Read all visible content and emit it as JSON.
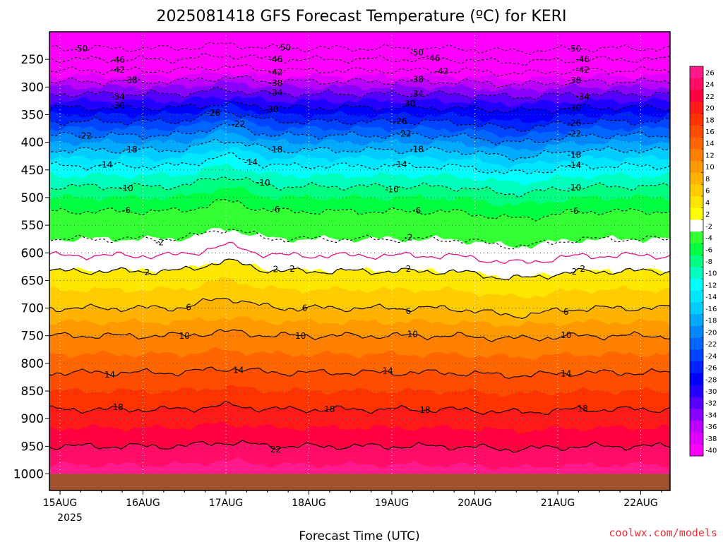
{
  "chart_data": {
    "type": "heatmap",
    "title": "2025081418 GFS Forecast Temperature (ºC) for KERI",
    "xlabel": "Forecast Time (UTC)",
    "ylabel": "",
    "x_ticks": [
      "15AUG",
      "16AUG",
      "17AUG",
      "18AUG",
      "19AUG",
      "20AUG",
      "21AUG",
      "22AUG"
    ],
    "x_year_label": "2025",
    "y_ticks": [
      250,
      300,
      350,
      400,
      450,
      500,
      550,
      600,
      650,
      700,
      750,
      800,
      850,
      900,
      950,
      1000
    ],
    "y_range_hpa": [
      200,
      1030
    ],
    "x_range_days": [
      0,
      7.4
    ],
    "ground_pressure_hpa": 1000,
    "ground_color": "#a0522d",
    "colorbar_ticks": [
      26,
      24,
      22,
      20,
      18,
      16,
      14,
      12,
      10,
      8,
      6,
      4,
      2,
      -2,
      -4,
      -6,
      -8,
      -10,
      -12,
      -14,
      -16,
      -18,
      -20,
      -22,
      -24,
      -26,
      -28,
      -30,
      -32,
      -34,
      -36,
      -38,
      -40
    ],
    "colorbar_colors": [
      "#ff1a8c",
      "#ff0d66",
      "#ff0040",
      "#ff1a1a",
      "#ff3300",
      "#ff4d00",
      "#ff6600",
      "#ff8000",
      "#ff9900",
      "#ffb300",
      "#ffcc00",
      "#ffe600",
      "#ffff00",
      "#ffffff",
      "#33ff33",
      "#00ff40",
      "#00ff80",
      "#00ffbf",
      "#00ffff",
      "#00e6ff",
      "#00ccff",
      "#00aaff",
      "#0088ff",
      "#0066ff",
      "#0044ff",
      "#0022ff",
      "#0000ff",
      "#2200ff",
      "#5500ff",
      "#8800ff",
      "#bb00ff",
      "#dd00ff",
      "#ff00ff"
    ],
    "temperature_profile": [
      {
        "p": 200,
        "t": -56
      },
      {
        "p": 250,
        "t": -46
      },
      {
        "p": 300,
        "t": -36
      },
      {
        "p": 350,
        "t": -28
      },
      {
        "p": 400,
        "t": -20
      },
      {
        "p": 450,
        "t": -13
      },
      {
        "p": 500,
        "t": -8
      },
      {
        "p": 550,
        "t": -4
      },
      {
        "p": 600,
        "t": 0
      },
      {
        "p": 650,
        "t": 3
      },
      {
        "p": 700,
        "t": 6
      },
      {
        "p": 750,
        "t": 10
      },
      {
        "p": 800,
        "t": 13
      },
      {
        "p": 850,
        "t": 16
      },
      {
        "p": 900,
        "t": 19
      },
      {
        "p": 950,
        "t": 22
      },
      {
        "p": 1000,
        "t": 25
      }
    ],
    "contours": [
      {
        "value": -50,
        "style": "dashed",
        "labels": [
          {
            "day": 0.25,
            "label": "-50"
          },
          {
            "day": 2.7,
            "label": "-50"
          },
          {
            "day": 4.3,
            "label": "-50"
          },
          {
            "day": 6.2,
            "label": "-50"
          }
        ]
      },
      {
        "value": -46,
        "style": "dashed",
        "labels": [
          {
            "day": 0.7,
            "label": "-46"
          },
          {
            "day": 2.6,
            "label": "-46"
          },
          {
            "day": 4.5,
            "label": "-46"
          },
          {
            "day": 6.3,
            "label": "-46"
          }
        ]
      },
      {
        "value": -42,
        "style": "dashed",
        "labels": [
          {
            "day": 0.7,
            "label": "-42"
          },
          {
            "day": 2.6,
            "label": "-42"
          },
          {
            "day": 4.6,
            "label": "-42"
          },
          {
            "day": 6.3,
            "label": "-42"
          }
        ]
      },
      {
        "value": -38,
        "style": "dashed",
        "labels": [
          {
            "day": 0.85,
            "label": "-38"
          },
          {
            "day": 2.6,
            "label": "-38"
          },
          {
            "day": 4.3,
            "label": "-38"
          },
          {
            "day": 6.2,
            "label": "-38"
          }
        ]
      },
      {
        "value": -34,
        "style": "dashed",
        "labels": [
          {
            "day": 0.7,
            "label": "-34"
          },
          {
            "day": 2.6,
            "label": "-34"
          },
          {
            "day": 4.3,
            "label": "-34"
          },
          {
            "day": 6.3,
            "label": "-34"
          }
        ]
      },
      {
        "value": -30,
        "style": "dashed",
        "labels": [
          {
            "day": 0.7,
            "label": "-30"
          },
          {
            "day": 2.55,
            "label": "-30"
          },
          {
            "day": 4.2,
            "label": "-30"
          },
          {
            "day": 6.2,
            "label": "-30"
          }
        ]
      },
      {
        "value": -26,
        "style": "dashed",
        "labels": [
          {
            "day": 1.85,
            "label": "-26"
          },
          {
            "day": 4.1,
            "label": "-26"
          },
          {
            "day": 6.2,
            "label": "-26"
          }
        ]
      },
      {
        "value": -22,
        "style": "dashed",
        "labels": [
          {
            "day": 0.3,
            "label": "-22"
          },
          {
            "day": 2.15,
            "label": "-22"
          },
          {
            "day": 4.15,
            "label": "-22"
          },
          {
            "day": 6.2,
            "label": "-22"
          }
        ]
      },
      {
        "value": -18,
        "style": "dashed",
        "labels": [
          {
            "day": 0.85,
            "label": "-18"
          },
          {
            "day": 2.6,
            "label": "-18"
          },
          {
            "day": 4.3,
            "label": "-18"
          },
          {
            "day": 6.2,
            "label": "-18"
          }
        ]
      },
      {
        "value": -14,
        "style": "dashed",
        "labels": [
          {
            "day": 0.55,
            "label": "-14"
          },
          {
            "day": 2.3,
            "label": "-14"
          },
          {
            "day": 4.1,
            "label": "-14"
          },
          {
            "day": 6.2,
            "label": "-14"
          }
        ]
      },
      {
        "value": -10,
        "style": "dashed",
        "labels": [
          {
            "day": 0.8,
            "label": "-10"
          },
          {
            "day": 2.45,
            "label": "-10"
          },
          {
            "day": 4.0,
            "label": "-10"
          },
          {
            "day": 6.2,
            "label": "-10"
          }
        ]
      },
      {
        "value": -6,
        "style": "dashed",
        "labels": [
          {
            "day": 0.8,
            "label": "-6"
          },
          {
            "day": 2.6,
            "label": "-6"
          },
          {
            "day": 4.3,
            "label": "-6"
          },
          {
            "day": 6.2,
            "label": "-6"
          }
        ]
      },
      {
        "value": -2,
        "style": "dashed",
        "labels": [
          {
            "day": 1.2,
            "label": "-2"
          },
          {
            "day": 4.2,
            "label": "-2"
          }
        ]
      },
      {
        "value": 2,
        "style": "dashed",
        "labels": [
          {
            "day": 2.8,
            "label": "2"
          },
          {
            "day": 6.3,
            "label": "2"
          }
        ]
      },
      {
        "value": 0,
        "style": "magenta",
        "labels": []
      },
      {
        "value": 2,
        "style": "solid",
        "labels": [
          {
            "day": 1.05,
            "label": "2"
          },
          {
            "day": 2.6,
            "label": "2"
          },
          {
            "day": 4.2,
            "label": "2"
          },
          {
            "day": 6.2,
            "label": "2"
          }
        ]
      },
      {
        "value": 6,
        "style": "solid",
        "labels": [
          {
            "day": 1.55,
            "label": "6"
          },
          {
            "day": 2.95,
            "label": "6"
          },
          {
            "day": 4.2,
            "label": "6"
          },
          {
            "day": 6.1,
            "label": "6"
          }
        ]
      },
      {
        "value": 10,
        "style": "solid",
        "labels": [
          {
            "day": 1.5,
            "label": "10"
          },
          {
            "day": 2.9,
            "label": "10"
          },
          {
            "day": 4.25,
            "label": "10"
          },
          {
            "day": 6.1,
            "label": "10"
          }
        ]
      },
      {
        "value": 14,
        "style": "solid",
        "labels": [
          {
            "day": 0.6,
            "label": "14"
          },
          {
            "day": 2.15,
            "label": "14"
          },
          {
            "day": 3.95,
            "label": "14"
          },
          {
            "day": 6.1,
            "label": "14"
          }
        ]
      },
      {
        "value": 18,
        "style": "solid",
        "labels": [
          {
            "day": 0.7,
            "label": "18"
          },
          {
            "day": 3.25,
            "label": "18"
          },
          {
            "day": 4.4,
            "label": "18"
          },
          {
            "day": 6.3,
            "label": "18"
          }
        ]
      },
      {
        "value": 22,
        "style": "solid",
        "labels": [
          {
            "day": 2.6,
            "label": "22"
          }
        ]
      }
    ]
  },
  "credit": "coolwx.com/models",
  "credit_color": "#e8303a"
}
